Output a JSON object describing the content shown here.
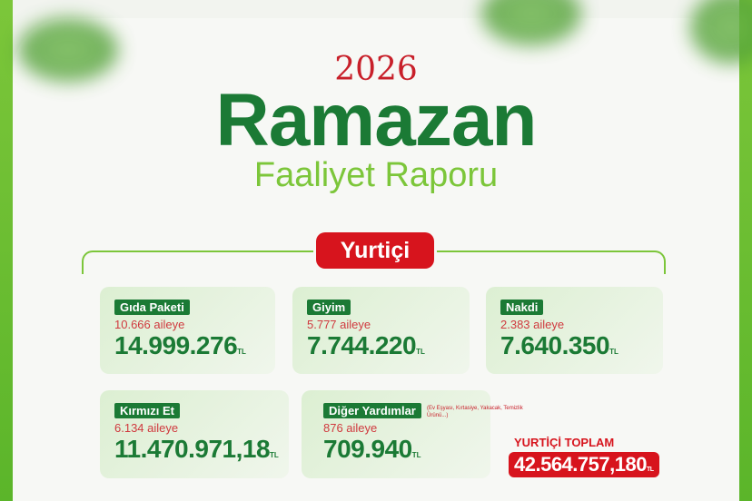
{
  "header": {
    "year": "2026",
    "title": "Ramazan",
    "subtitle": "Faaliyet Raporu"
  },
  "section": {
    "label": "Yurtiçi"
  },
  "colors": {
    "green": "#1b7a35",
    "lime": "#7cc63a",
    "red": "#d7141d"
  },
  "currency": "TL",
  "cards": [
    {
      "label": "Gıda Paketi",
      "families": "10.666 aileye",
      "amount": "14.999.276"
    },
    {
      "label": "Giyim",
      "families": "5.777 aileye",
      "amount": "7.744.220"
    },
    {
      "label": "Nakdi",
      "families": "2.383 aileye",
      "amount": "7.640.350"
    },
    {
      "label": "Kırmızı Et",
      "families": "6.134 aileye",
      "amount": "11.470.971,18"
    },
    {
      "label": "Diğer Yardımlar",
      "note": "(Ev Eşyası, Kırtasiye, Yakacak, Temizlik Ürünü...)",
      "families": "876 aileye",
      "amount": "709.940"
    }
  ],
  "total": {
    "label": "YURTİÇİ TOPLAM",
    "amount": "42.564.757,180"
  }
}
